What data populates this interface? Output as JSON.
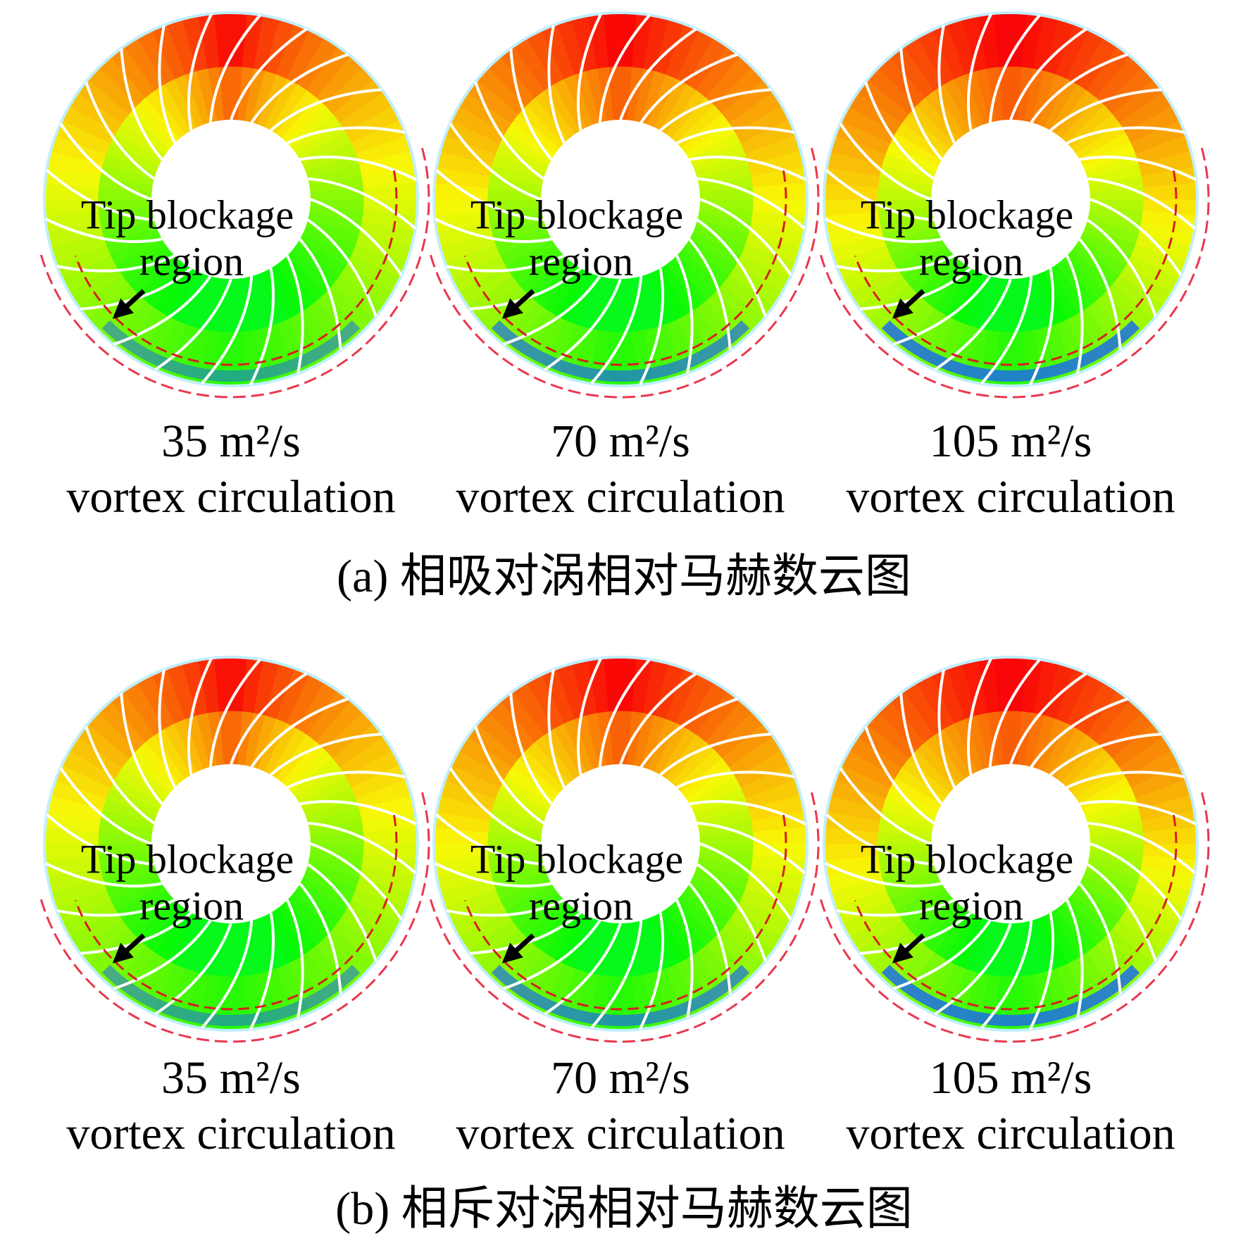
{
  "panels": [
    {
      "caption": "(a) 相吸对涡相对马赫数云图",
      "plots": [
        {
          "annotation": [
            "Tip blockage",
            "region"
          ],
          "circulation": "35 m²/s",
          "label": "vortex circulation"
        },
        {
          "annotation": [
            "Tip blockage",
            "region"
          ],
          "circulation": "70 m²/s",
          "label": "vortex circulation"
        },
        {
          "annotation": [
            "Tip blockage",
            "region"
          ],
          "circulation": "105 m²/s",
          "label": "vortex circulation"
        }
      ]
    },
    {
      "caption": "(b) 相斥对涡相对马赫数云图",
      "plots": [
        {
          "annotation": [
            "Tip blockage",
            "region"
          ],
          "circulation": "35 m²/s",
          "label": "vortex circulation"
        },
        {
          "annotation": [
            "Tip blockage",
            "region"
          ],
          "circulation": "70 m²/s",
          "label": "vortex circulation"
        },
        {
          "annotation": [
            "Tip blockage",
            "region"
          ],
          "circulation": "105 m²/s",
          "label": "vortex circulation"
        }
      ]
    }
  ]
}
